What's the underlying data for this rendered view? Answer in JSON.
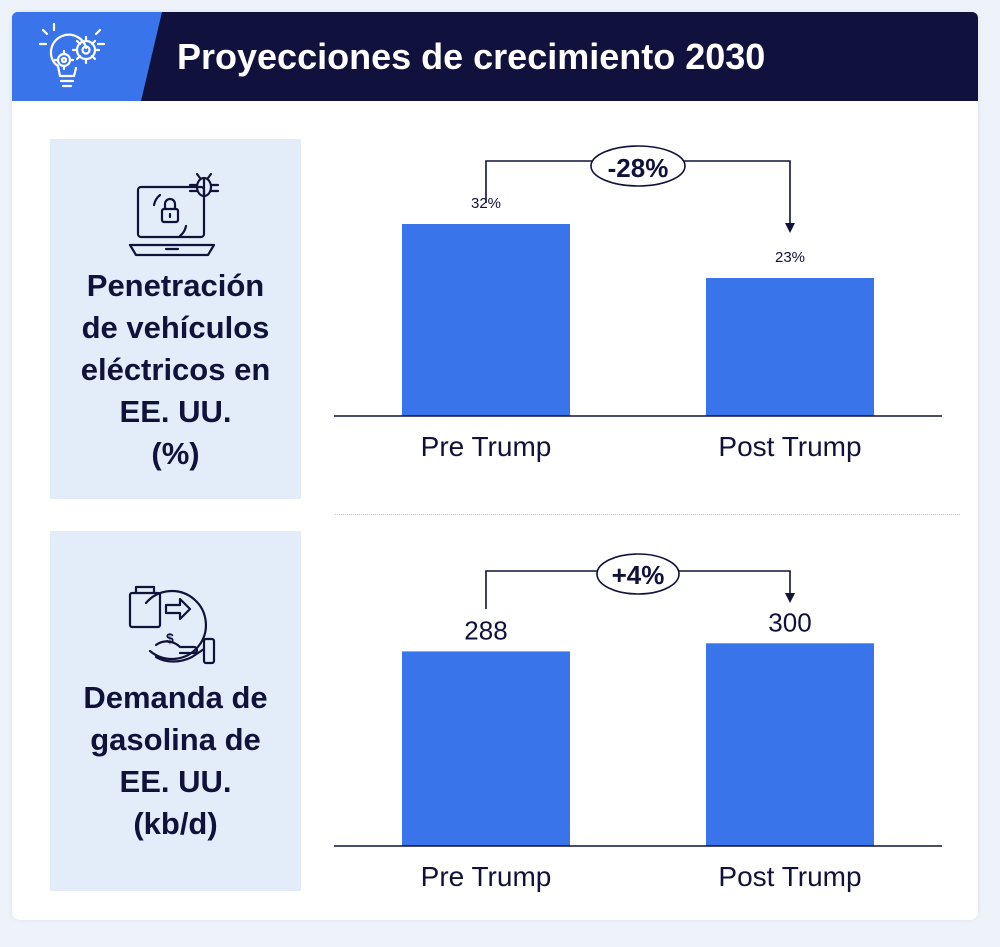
{
  "header": {
    "title": "Proyecciones de crecimiento 2030",
    "icon": "lightbulb-gears-icon"
  },
  "colors": {
    "bar": "#3a74ea",
    "header_bg": "#11113d",
    "panel_bg": "#e3edfa",
    "text": "#10123a"
  },
  "sections": [
    {
      "label": "Penetración\nde vehículos\neléctricos en\nEE. UU.\n(%)",
      "icon": "laptop-lock-bug-icon"
    },
    {
      "label": "Demanda de\ngasolina de\nEE. UU.\n(kb/d)",
      "icon": "fuel-exchange-hand-icon"
    }
  ],
  "chart_data": [
    {
      "type": "bar",
      "title": "Penetración de vehículos eléctricos en EE. UU. (%)",
      "categories": [
        "Pre Trump",
        "Post Trump"
      ],
      "values": [
        32,
        23
      ],
      "value_labels": [
        "32%",
        "23%"
      ],
      "change_label": "-28%",
      "ylim": [
        0,
        40
      ],
      "xlabel": "",
      "ylabel": ""
    },
    {
      "type": "bar",
      "title": "Demanda de gasolina de EE. UU. (kb/d)",
      "categories": [
        "Pre Trump",
        "Post Trump"
      ],
      "values": [
        288,
        300
      ],
      "value_labels": [
        "288",
        "300"
      ],
      "change_label": "+4%",
      "ylim": [
        0,
        370
      ],
      "xlabel": "",
      "ylabel": ""
    }
  ]
}
